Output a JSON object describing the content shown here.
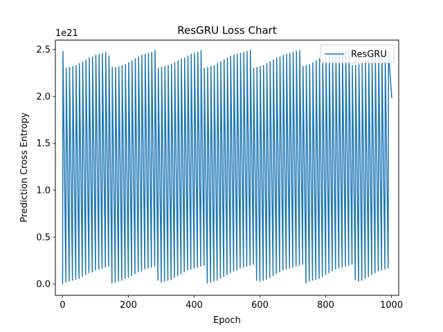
{
  "chart_data": {
    "type": "line",
    "title": "ResGRU Loss Chart",
    "xlabel": "Epoch",
    "ylabel": "Prediction Cross Entropy",
    "y_offset_text": "1e21",
    "y_scale_multiplier": 1e+21,
    "xlim": [
      -22,
      1022
    ],
    "ylim": [
      -0.12,
      2.6
    ],
    "x_ticks": [
      0,
      200,
      400,
      600,
      800,
      1000
    ],
    "y_ticks": [
      0.0,
      0.5,
      1.0,
      1.5,
      2.0,
      2.5
    ],
    "x_tick_labels": [
      "0",
      "200",
      "400",
      "600",
      "800",
      "1000"
    ],
    "y_tick_labels": [
      "0.0",
      "0.5",
      "1.0",
      "1.5",
      "2.0",
      "2.5"
    ],
    "grid": false,
    "legend_position": "top-right",
    "series": [
      {
        "name": "ResGRU",
        "color": "#1f77b4",
        "x_start": 0,
        "x_step": 10,
        "points_per_cycle": 2,
        "final_x": 1001,
        "final_y": 1.98,
        "peaks": [
          2.48,
          2.3,
          2.31,
          2.32,
          2.33,
          2.35,
          2.37,
          2.39,
          2.41,
          2.42,
          2.44,
          2.45,
          2.46,
          2.47,
          2.43,
          2.31,
          2.31,
          2.32,
          2.33,
          2.34,
          2.36,
          2.38,
          2.4,
          2.42,
          2.44,
          2.45,
          2.46,
          2.47,
          2.49,
          2.3,
          2.31,
          2.32,
          2.33,
          2.34,
          2.36,
          2.38,
          2.4,
          2.41,
          2.43,
          2.45,
          2.46,
          2.47,
          2.49,
          2.3,
          2.31,
          2.32,
          2.33,
          2.35,
          2.37,
          2.39,
          2.41,
          2.43,
          2.44,
          2.45,
          2.46,
          2.47,
          2.48,
          2.49,
          2.3,
          2.31,
          2.32,
          2.33,
          2.35,
          2.37,
          2.39,
          2.41,
          2.42,
          2.44,
          2.45,
          2.46,
          2.47,
          2.48,
          2.49,
          2.32,
          2.33,
          2.34,
          2.36,
          2.38,
          2.4,
          2.41,
          2.43,
          2.44,
          2.45,
          2.46,
          2.47,
          2.48,
          2.49,
          2.5,
          2.33,
          2.33,
          2.34,
          2.36,
          2.38,
          2.39,
          2.41,
          2.43,
          2.44,
          2.45,
          2.46,
          2.47
        ],
        "troughs": [
          0.0,
          0.02,
          0.03,
          0.04,
          0.05,
          0.06,
          0.08,
          0.1,
          0.12,
          0.13,
          0.15,
          0.16,
          0.17,
          0.18,
          0.19,
          0.01,
          0.02,
          0.03,
          0.04,
          0.06,
          0.07,
          0.09,
          0.11,
          0.13,
          0.14,
          0.16,
          0.17,
          0.18,
          0.19,
          0.04,
          0.02,
          0.03,
          0.04,
          0.05,
          0.07,
          0.09,
          0.11,
          0.13,
          0.15,
          0.16,
          0.17,
          0.18,
          0.19,
          0.2,
          0.01,
          0.02,
          0.03,
          0.04,
          0.06,
          0.08,
          0.1,
          0.12,
          0.14,
          0.15,
          0.17,
          0.18,
          0.19,
          0.2,
          0.21,
          0.04,
          0.03,
          0.04,
          0.05,
          0.07,
          0.09,
          0.11,
          0.13,
          0.15,
          0.16,
          0.17,
          0.18,
          0.19,
          0.2,
          0.21,
          0.01,
          0.03,
          0.04,
          0.05,
          0.06,
          0.08,
          0.1,
          0.12,
          0.14,
          0.16,
          0.17,
          0.18,
          0.19,
          0.2,
          0.21,
          0.05,
          0.03,
          0.04,
          0.06,
          0.08,
          0.1,
          0.12,
          0.14,
          0.15,
          0.16,
          0.17,
          0.12
        ]
      }
    ]
  }
}
